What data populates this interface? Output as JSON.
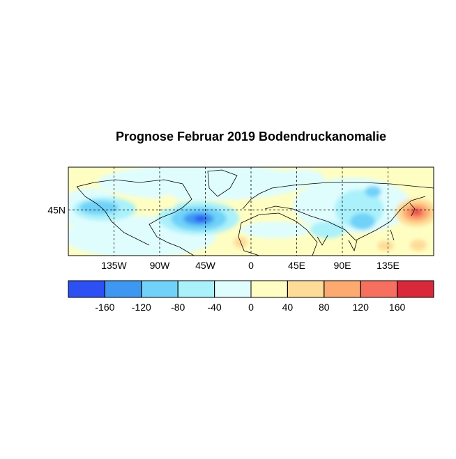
{
  "title": "Prognose Februar 2019 Bodendruckanomalie",
  "map": {
    "xlim": [
      -180,
      180
    ],
    "xticks": [
      {
        "value": -135,
        "label": "135W"
      },
      {
        "value": -90,
        "label": "90W"
      },
      {
        "value": -45,
        "label": "45W"
      },
      0,
      {
        "value": 45,
        "label": "45E"
      },
      {
        "value": 90,
        "label": "90E"
      },
      {
        "value": 135,
        "label": "135E"
      }
    ],
    "ylim": [
      0,
      87
    ],
    "yticks": [
      {
        "value": 45,
        "label": "45N"
      }
    ],
    "grid": true
  },
  "colorbar": {
    "lim": [
      -200,
      200
    ],
    "ticks": [
      -160,
      -120,
      -80,
      -40,
      0,
      40,
      80,
      120,
      160
    ],
    "colors": [
      "#2c50f4",
      "#3e98f2",
      "#70d2f8",
      "#aaf1fb",
      "#e0fdfe",
      "#fefec2",
      "#fedc98",
      "#fdaa70",
      "#f7705f",
      "#d8283a"
    ]
  }
}
